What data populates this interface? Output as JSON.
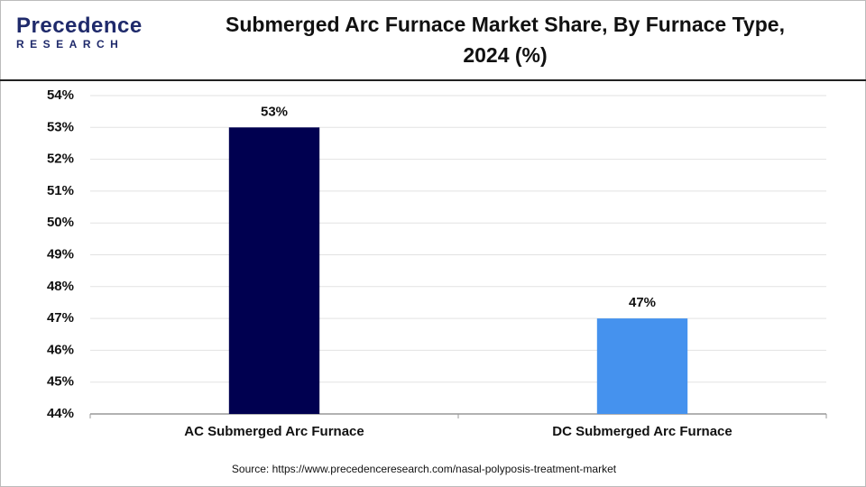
{
  "logo": {
    "name": "Precedence",
    "tagline": "RESEARCH"
  },
  "chart_data": {
    "type": "bar",
    "title": "Submerged Arc Furnace Market Share, By Furnace Type, 2024 (%)",
    "categories": [
      "AC Submerged Arc Furnace",
      "DC Submerged Arc Furnace"
    ],
    "values": [
      53,
      47
    ],
    "value_labels": [
      "53%",
      "47%"
    ],
    "colors": [
      "#000050",
      "#4592ee"
    ],
    "ylim": [
      44,
      54
    ],
    "yticks": [
      {
        "value": 44,
        "label": "44%"
      },
      {
        "value": 45,
        "label": "45%"
      },
      {
        "value": 46,
        "label": "46%"
      },
      {
        "value": 47,
        "label": "47%"
      },
      {
        "value": 48,
        "label": "48%"
      },
      {
        "value": 49,
        "label": "49%"
      },
      {
        "value": 50,
        "label": "50%"
      },
      {
        "value": 51,
        "label": "51%"
      },
      {
        "value": 52,
        "label": "52%"
      },
      {
        "value": 53,
        "label": "53%"
      },
      {
        "value": 54,
        "label": "54%"
      }
    ],
    "grid": true,
    "source": "Source: https://www.precedenceresearch.com/nasal-polyposis-treatment-market"
  }
}
